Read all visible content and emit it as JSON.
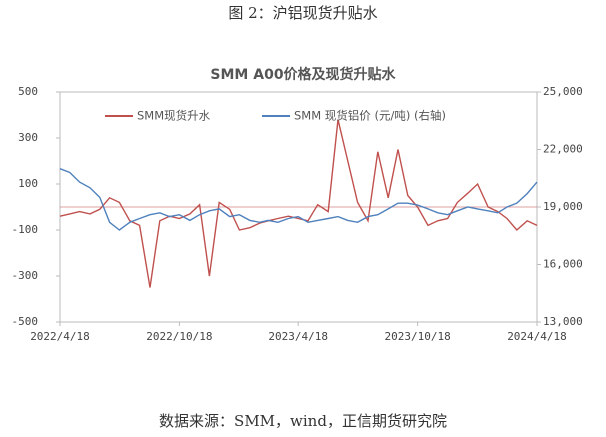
{
  "chart_data": {
    "type": "line",
    "caption": "图 2：沪铝现货升贴水",
    "title": "SMM A00价格及现货升贴水",
    "source": "数据来源：SMM，wind，正信期货研究院",
    "x": [
      "2022/4/18",
      "2022/5/3",
      "2022/5/18",
      "2022/6/3",
      "2022/6/18",
      "2022/7/3",
      "2022/7/18",
      "2022/8/3",
      "2022/8/18",
      "2022/9/3",
      "2022/9/18",
      "2022/10/3",
      "2022/10/18",
      "2022/11/3",
      "2022/11/18",
      "2022/12/3",
      "2022/12/18",
      "2023/1/3",
      "2023/1/18",
      "2023/2/3",
      "2023/2/18",
      "2023/3/3",
      "2023/3/18",
      "2023/4/3",
      "2023/4/18",
      "2023/5/3",
      "2023/5/18",
      "2023/6/3",
      "2023/6/18",
      "2023/7/3",
      "2023/7/18",
      "2023/8/3",
      "2023/8/18",
      "2023/9/3",
      "2023/9/18",
      "2023/10/3",
      "2023/10/18",
      "2023/11/3",
      "2023/11/18",
      "2023/12/3",
      "2023/12/18",
      "2024/1/3",
      "2024/1/18",
      "2024/2/3",
      "2024/2/18",
      "2024/3/3",
      "2024/3/18",
      "2024/4/3",
      "2024/4/18"
    ],
    "xticks": [
      "2022/4/18",
      "2022/10/18",
      "2023/4/18",
      "2023/10/18",
      "2024/4/18"
    ],
    "series": [
      {
        "name": "SMM现货升水",
        "color": "#c0504d",
        "values": [
          -40,
          -30,
          -20,
          -30,
          -10,
          40,
          20,
          -60,
          -80,
          -350,
          -60,
          -40,
          -50,
          -30,
          10,
          -300,
          20,
          -10,
          -100,
          -90,
          -70,
          -60,
          -50,
          -40,
          -50,
          -60,
          10,
          -20,
          380,
          200,
          20,
          -60,
          240,
          40,
          250,
          50,
          0,
          -80,
          -60,
          -50,
          20,
          60,
          100,
          0,
          -20,
          -50,
          -100,
          -60,
          -80
        ]
      },
      {
        "name": "SMM 现货铝价 (元/吨) (右轴)",
        "color": "#4f81bd",
        "axis": "y2",
        "values": [
          21000,
          20800,
          20300,
          20000,
          19500,
          18200,
          17800,
          18200,
          18400,
          18600,
          18700,
          18500,
          18600,
          18300,
          18600,
          18800,
          18900,
          18500,
          18600,
          18300,
          18200,
          18300,
          18200,
          18400,
          18500,
          18200,
          18300,
          18400,
          18500,
          18300,
          18200,
          18500,
          18600,
          18900,
          19200,
          19200,
          19100,
          18900,
          18700,
          18600,
          18800,
          19000,
          18900,
          18800,
          18700,
          19000,
          19200,
          19700,
          20300
        ]
      }
    ],
    "ylim": [
      -500,
      500
    ],
    "yticks": [
      -500,
      -300,
      -100,
      100,
      300,
      500
    ],
    "y2lim": [
      13000,
      25000
    ],
    "y2ticks": [
      {
        "value": 13000,
        "label": "13,000"
      },
      {
        "value": 16000,
        "label": "16,000"
      },
      {
        "value": 19000,
        "label": "19,000"
      },
      {
        "value": 22000,
        "label": "22,000"
      },
      {
        "value": 25000,
        "label": "25,000"
      }
    ]
  }
}
